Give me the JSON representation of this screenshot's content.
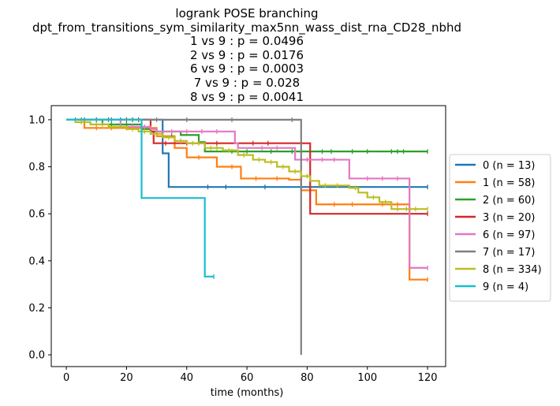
{
  "chart_data": {
    "type": "line",
    "title_lines": [
      "logrank POSE branching",
      "dpt_from_transitions_sym_similarity_max5nn_wass_dist_rna_CD28_nbhd",
      "1 vs 9 :  p = 0.0496",
      "2 vs 9 :  p = 0.0176",
      "6 vs 9 :  p = 0.0003",
      "7 vs 9 :  p = 0.028",
      "8 vs 9 :  p = 0.0041"
    ],
    "xlabel": "time (months)",
    "ylabel": "",
    "xlim": [
      -5,
      126
    ],
    "ylim": [
      -0.05,
      1.06
    ],
    "xticks": [
      0,
      20,
      40,
      60,
      80,
      100,
      120
    ],
    "yticks": [
      0.0,
      0.2,
      0.4,
      0.6,
      0.8,
      1.0
    ],
    "xtick_labels": [
      "0",
      "20",
      "40",
      "60",
      "80",
      "100",
      "120"
    ],
    "ytick_labels": [
      "0.0",
      "0.2",
      "0.4",
      "0.6",
      "0.8",
      "1.0"
    ],
    "grid": false,
    "legend_position": "right-outside",
    "series": [
      {
        "name": "0 (n = 13)",
        "color": "#1f77b4",
        "steps": [
          [
            0,
            1.0
          ],
          [
            32,
            0.857
          ],
          [
            34,
            0.714
          ],
          [
            120,
            0.714
          ]
        ],
        "censors": [
          [
            3,
            1.0
          ],
          [
            6,
            1.0
          ],
          [
            10,
            1.0
          ],
          [
            14,
            1.0
          ],
          [
            18,
            1.0
          ],
          [
            22,
            1.0
          ],
          [
            47,
            0.714
          ],
          [
            53,
            0.714
          ],
          [
            66,
            0.714
          ],
          [
            120,
            0.714
          ]
        ]
      },
      {
        "name": "1 (n = 58)",
        "color": "#ff7f0e",
        "steps": [
          [
            0,
            1.0
          ],
          [
            6,
            0.965
          ],
          [
            30,
            0.93
          ],
          [
            36,
            0.88
          ],
          [
            40,
            0.84
          ],
          [
            50,
            0.8
          ],
          [
            58,
            0.75
          ],
          [
            74,
            0.745
          ],
          [
            78,
            0.7
          ],
          [
            83,
            0.64
          ],
          [
            114,
            0.32
          ],
          [
            120,
            0.32
          ]
        ],
        "censors": [
          [
            10,
            0.965
          ],
          [
            15,
            0.965
          ],
          [
            20,
            0.965
          ],
          [
            44,
            0.84
          ],
          [
            55,
            0.8
          ],
          [
            63,
            0.75
          ],
          [
            70,
            0.75
          ],
          [
            89,
            0.64
          ],
          [
            95,
            0.64
          ],
          [
            105,
            0.64
          ],
          [
            110,
            0.64
          ],
          [
            120,
            0.32
          ]
        ]
      },
      {
        "name": "2 (n = 60)",
        "color": "#2ca02c",
        "steps": [
          [
            0,
            1.0
          ],
          [
            12,
            0.98
          ],
          [
            25,
            0.96
          ],
          [
            28,
            0.95
          ],
          [
            38,
            0.935
          ],
          [
            44,
            0.905
          ],
          [
            46,
            0.865
          ],
          [
            120,
            0.865
          ]
        ],
        "censors": [
          [
            15,
            0.98
          ],
          [
            20,
            0.98
          ],
          [
            35,
            0.935
          ],
          [
            55,
            0.865
          ],
          [
            60,
            0.865
          ],
          [
            68,
            0.865
          ],
          [
            75,
            0.865
          ],
          [
            85,
            0.865
          ],
          [
            88,
            0.865
          ],
          [
            95,
            0.865
          ],
          [
            100,
            0.865
          ],
          [
            108,
            0.865
          ],
          [
            110,
            0.865
          ],
          [
            112,
            0.865
          ],
          [
            120,
            0.865
          ]
        ]
      },
      {
        "name": "3 (n = 20)",
        "color": "#d62728",
        "steps": [
          [
            0,
            1.0
          ],
          [
            28,
            0.95
          ],
          [
            29,
            0.9
          ],
          [
            81,
            0.6
          ],
          [
            120,
            0.6
          ]
        ],
        "censors": [
          [
            15,
            1.0
          ],
          [
            20,
            1.0
          ],
          [
            24,
            1.0
          ],
          [
            33,
            0.9
          ],
          [
            40,
            0.9
          ],
          [
            50,
            0.9
          ],
          [
            62,
            0.9
          ],
          [
            67,
            0.9
          ],
          [
            120,
            0.6
          ]
        ]
      },
      {
        "name": "6 (n = 97)",
        "color": "#e377c2",
        "steps": [
          [
            0,
            1.0
          ],
          [
            18,
            0.97
          ],
          [
            28,
            0.96
          ],
          [
            30,
            0.95
          ],
          [
            56,
            0.9
          ],
          [
            57,
            0.88
          ],
          [
            76,
            0.83
          ],
          [
            94,
            0.75
          ],
          [
            114,
            0.37
          ],
          [
            120,
            0.37
          ]
        ],
        "censors": [
          [
            10,
            1.0
          ],
          [
            15,
            1.0
          ],
          [
            22,
            0.97
          ],
          [
            26,
            0.97
          ],
          [
            35,
            0.95
          ],
          [
            40,
            0.95
          ],
          [
            45,
            0.95
          ],
          [
            50,
            0.95
          ],
          [
            65,
            0.88
          ],
          [
            70,
            0.88
          ],
          [
            80,
            0.83
          ],
          [
            85,
            0.83
          ],
          [
            89,
            0.83
          ],
          [
            100,
            0.75
          ],
          [
            105,
            0.75
          ],
          [
            110,
            0.75
          ],
          [
            120,
            0.37
          ]
        ]
      },
      {
        "name": "7 (n = 17)",
        "color": "#7f7f7f",
        "steps": [
          [
            0,
            1.0
          ],
          [
            78,
            1.0
          ],
          [
            78,
            0.0
          ]
        ],
        "censors": [
          [
            5,
            1.0
          ],
          [
            10,
            1.0
          ],
          [
            15,
            1.0
          ],
          [
            22,
            1.0
          ],
          [
            30,
            1.0
          ],
          [
            40,
            1.0
          ],
          [
            55,
            1.0
          ],
          [
            75,
            1.0
          ]
        ]
      },
      {
        "name": "8 (n = 334)",
        "color": "#bcbd22",
        "steps": [
          [
            0,
            1.0
          ],
          [
            3,
            0.99
          ],
          [
            8,
            0.98
          ],
          [
            14,
            0.97
          ],
          [
            20,
            0.96
          ],
          [
            24,
            0.95
          ],
          [
            28,
            0.94
          ],
          [
            32,
            0.925
          ],
          [
            36,
            0.91
          ],
          [
            40,
            0.9
          ],
          [
            46,
            0.88
          ],
          [
            52,
            0.87
          ],
          [
            57,
            0.85
          ],
          [
            62,
            0.83
          ],
          [
            66,
            0.82
          ],
          [
            70,
            0.8
          ],
          [
            74,
            0.78
          ],
          [
            78,
            0.76
          ],
          [
            81,
            0.74
          ],
          [
            84,
            0.72
          ],
          [
            94,
            0.71
          ],
          [
            97,
            0.69
          ],
          [
            100,
            0.67
          ],
          [
            104,
            0.65
          ],
          [
            108,
            0.62
          ],
          [
            120,
            0.62
          ]
        ],
        "censors": [
          [
            5,
            0.99
          ],
          [
            10,
            0.98
          ],
          [
            12,
            0.98
          ],
          [
            16,
            0.97
          ],
          [
            22,
            0.96
          ],
          [
            26,
            0.95
          ],
          [
            30,
            0.94
          ],
          [
            34,
            0.925
          ],
          [
            38,
            0.91
          ],
          [
            42,
            0.9
          ],
          [
            44,
            0.9
          ],
          [
            48,
            0.88
          ],
          [
            50,
            0.88
          ],
          [
            54,
            0.87
          ],
          [
            59,
            0.85
          ],
          [
            64,
            0.83
          ],
          [
            68,
            0.82
          ],
          [
            72,
            0.8
          ],
          [
            76,
            0.78
          ],
          [
            80,
            0.76
          ],
          [
            86,
            0.72
          ],
          [
            90,
            0.72
          ],
          [
            96,
            0.71
          ],
          [
            102,
            0.67
          ],
          [
            106,
            0.65
          ],
          [
            110,
            0.62
          ],
          [
            113,
            0.62
          ],
          [
            116,
            0.62
          ],
          [
            120,
            0.62
          ]
        ]
      },
      {
        "name": "9 (n = 4)",
        "color": "#17becf",
        "steps": [
          [
            0,
            1.0
          ],
          [
            25,
            1.0
          ],
          [
            25,
            0.667
          ],
          [
            46,
            0.667
          ],
          [
            46,
            0.333
          ],
          [
            49,
            0.333
          ]
        ],
        "censors": [
          [
            49,
            0.333
          ]
        ]
      }
    ]
  }
}
